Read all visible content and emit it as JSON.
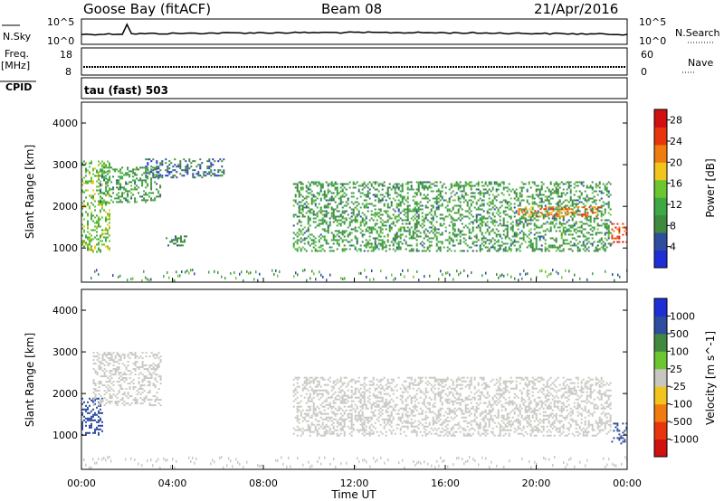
{
  "header": {
    "station": "Goose Bay (fitACF)",
    "beam": "Beam 08",
    "date": "21/Apr/2016"
  },
  "noise_panel": {
    "left_label": "N.Sky",
    "left_ticks": [
      "10^5",
      "10^0"
    ],
    "right_label": "N.Search",
    "right_ticks": [
      "10^5",
      "10^0"
    ]
  },
  "freq_panel": {
    "left_label_1": "Freq.",
    "left_label_2": "[MHz]",
    "left_ticks": [
      "18",
      "8"
    ],
    "right_label": "Nave",
    "right_ticks": [
      "60",
      "0"
    ]
  },
  "cpid_panel": {
    "label": "CPID",
    "text": "tau (fast) 503"
  },
  "colors": {
    "power_scale": [
      "#1f2fd6",
      "#2e4d9f",
      "#3f8a3f",
      "#3ea845",
      "#6cc630",
      "#f2c51d",
      "#f07c10",
      "#e8350e",
      "#d11010"
    ],
    "velocity_scale": [
      "#1f2fd6",
      "#2e4d9f",
      "#3f8a3f",
      "#6cc630",
      "#c7c7c0",
      "#f2c51d",
      "#f07c10",
      "#e8350e",
      "#d11010"
    ],
    "ground_scatter": "#c8c8c2"
  },
  "chart_data": [
    {
      "type": "heatmap",
      "name": "power",
      "ylabel": "Slant Range [km]",
      "ylim": [
        180,
        4500
      ],
      "yticks": [
        "1000",
        "2000",
        "3000",
        "4000"
      ],
      "xlim_hours": [
        0,
        24
      ],
      "colorbar_label": "Power [dB]",
      "colorbar_ticks": [
        "4",
        "8",
        "12",
        "16",
        "20",
        "24",
        "28"
      ],
      "colorbar_range": [
        0,
        30
      ],
      "echo_regions": [
        {
          "t_start": 0.0,
          "t_end": 1.2,
          "range_start": 900,
          "range_end": 3100,
          "power": 14
        },
        {
          "t_start": 0.8,
          "t_end": 3.5,
          "range_start": 2100,
          "range_end": 2950,
          "power": 10
        },
        {
          "t_start": 2.8,
          "t_end": 6.3,
          "range_start": 2700,
          "range_end": 3150,
          "power": 6
        },
        {
          "t_start": 3.7,
          "t_end": 4.6,
          "range_start": 1050,
          "range_end": 1300,
          "power": 8
        },
        {
          "t_start": 9.3,
          "t_end": 23.3,
          "range_start": 950,
          "range_end": 2600,
          "power": 10
        },
        {
          "t_start": 19.2,
          "t_end": 22.8,
          "range_start": 1750,
          "range_end": 2000,
          "power": 22
        },
        {
          "t_start": 23.3,
          "t_end": 24.0,
          "range_start": 1100,
          "range_end": 1600,
          "power": 24
        }
      ]
    },
    {
      "type": "heatmap",
      "name": "velocity",
      "xlabel": "Time UT",
      "ylabel": "Slant Range [km]",
      "ylim": [
        180,
        4500
      ],
      "yticks": [
        "1000",
        "2000",
        "3000",
        "4000"
      ],
      "xlim_hours": [
        0,
        24
      ],
      "xticks": [
        "00:00",
        "04:00",
        "08:00",
        "12:00",
        "16:00",
        "20:00",
        "00:00"
      ],
      "colorbar_label": "Velocity [m s^-1]",
      "colorbar_ticks": [
        "1000",
        "500",
        "100",
        "25",
        "-25",
        "-100",
        "-500",
        "-1000"
      ],
      "echo_regions": [
        {
          "t_start": 0.0,
          "t_end": 0.9,
          "range_start": 1000,
          "range_end": 1900,
          "velocity": 200
        },
        {
          "t_start": 0.5,
          "t_end": 3.5,
          "range_start": 1700,
          "range_end": 3000,
          "velocity": 0
        },
        {
          "t_start": 9.3,
          "t_end": 23.3,
          "range_start": 1000,
          "range_end": 2400,
          "velocity": 0
        },
        {
          "t_start": 23.3,
          "t_end": 24.0,
          "range_start": 800,
          "range_end": 1300,
          "velocity": 300
        }
      ]
    }
  ]
}
